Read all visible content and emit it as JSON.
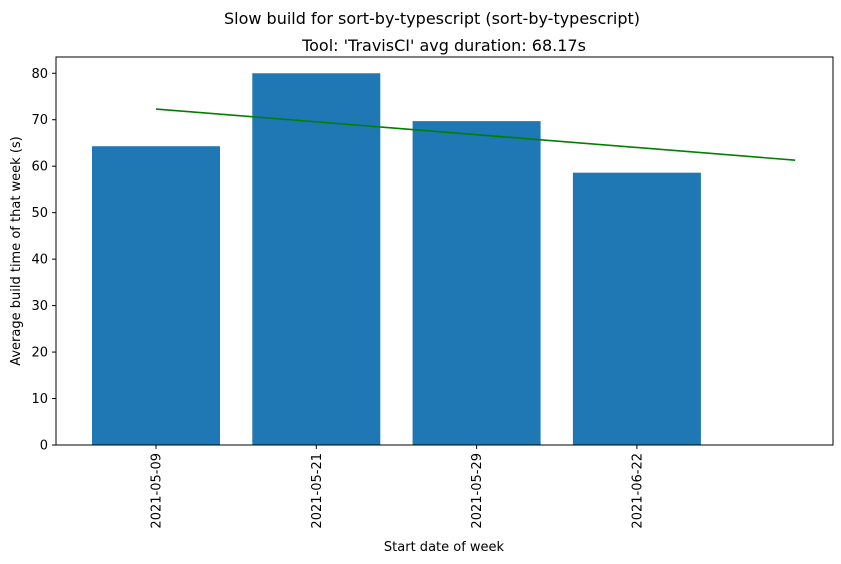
{
  "chart_data": {
    "type": "bar",
    "title": "Slow build for sort-by-typescript (sort-by-typescript)",
    "subtitle": "Tool: 'TravisCI' avg duration: 68.17s",
    "xlabel": "Start date of week",
    "ylabel": "Average build time of that week (s)",
    "categories": [
      "2021-05-09",
      "2021-05-21",
      "2021-05-29",
      "2021-06-22"
    ],
    "values": [
      64.3,
      80.0,
      69.7,
      58.6
    ],
    "ylim": [
      0,
      83.5
    ],
    "yticks": [
      0,
      10,
      20,
      30,
      40,
      50,
      60,
      70,
      80
    ],
    "trend_line": {
      "start": 72.3,
      "end": 61.3,
      "x_start_index": 0,
      "x_end_index": 4,
      "color": "#008000"
    },
    "bar_color": "#1f77b4",
    "grid": false,
    "legend": "none"
  }
}
